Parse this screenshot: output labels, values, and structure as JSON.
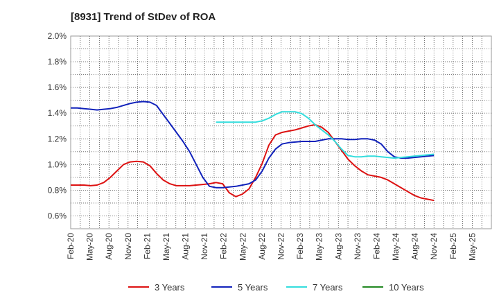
{
  "chart_data": {
    "type": "line",
    "title": "[8931]  Trend of StDev of ROA",
    "xlabel": "",
    "ylabel": "",
    "ylim": [
      0.5,
      2.0
    ],
    "yticks": [
      "0.6%",
      "0.8%",
      "1.0%",
      "1.2%",
      "1.4%",
      "1.6%",
      "1.8%",
      "2.0%"
    ],
    "ytick_values": [
      0.6,
      0.8,
      1.0,
      1.2,
      1.4,
      1.6,
      1.8,
      2.0
    ],
    "xticks": [
      "Feb-20",
      "May-20",
      "Aug-20",
      "Nov-20",
      "Feb-21",
      "May-21",
      "Aug-21",
      "Nov-21",
      "Feb-22",
      "May-22",
      "Aug-22",
      "Nov-22",
      "Feb-23",
      "May-23",
      "Aug-23",
      "Nov-23",
      "Feb-24",
      "May-24",
      "Aug-24",
      "Nov-24",
      "Feb-25",
      "May-25"
    ],
    "grid": true,
    "legend_position": "bottom",
    "series": [
      {
        "name": "3 Years",
        "color": "#dd1111",
        "values": [
          0.84,
          0.84,
          0.84,
          0.835,
          0.84,
          0.86,
          0.9,
          0.95,
          1.0,
          1.02,
          1.025,
          1.02,
          0.99,
          0.93,
          0.88,
          0.85,
          0.835,
          0.835,
          0.835,
          0.84,
          0.845,
          0.85,
          0.86,
          0.85,
          0.78,
          0.75,
          0.77,
          0.81,
          0.9,
          1.01,
          1.15,
          1.23,
          1.25,
          1.26,
          1.27,
          1.285,
          1.3,
          1.31,
          1.29,
          1.25,
          1.18,
          1.11,
          1.04,
          0.99,
          0.95,
          0.92,
          0.91,
          0.9,
          0.88,
          0.85,
          0.82,
          0.79,
          0.76,
          0.74,
          0.73,
          0.72
        ]
      },
      {
        "name": "5 Years",
        "color": "#1122bb",
        "values": [
          1.44,
          1.44,
          1.435,
          1.43,
          1.425,
          1.43,
          1.435,
          1.445,
          1.46,
          1.475,
          1.485,
          1.49,
          1.485,
          1.46,
          1.39,
          1.32,
          1.25,
          1.18,
          1.1,
          1.0,
          0.9,
          0.83,
          0.82,
          0.82,
          0.825,
          0.83,
          0.84,
          0.85,
          0.88,
          0.95,
          1.05,
          1.12,
          1.16,
          1.17,
          1.175,
          1.18,
          1.18,
          1.18,
          1.19,
          1.2,
          1.2,
          1.2,
          1.195,
          1.195,
          1.2,
          1.2,
          1.19,
          1.16,
          1.1,
          1.06,
          1.05,
          1.05,
          1.055,
          1.06,
          1.065,
          1.07
        ]
      },
      {
        "name": "7 Years",
        "color": "#33dddd",
        "values": [
          null,
          null,
          null,
          null,
          null,
          null,
          null,
          null,
          null,
          null,
          null,
          null,
          null,
          null,
          null,
          null,
          null,
          null,
          null,
          null,
          null,
          null,
          1.33,
          1.33,
          1.33,
          1.33,
          1.33,
          1.33,
          1.33,
          1.34,
          1.36,
          1.39,
          1.41,
          1.41,
          1.41,
          1.395,
          1.36,
          1.31,
          1.27,
          1.23,
          1.18,
          1.12,
          1.07,
          1.06,
          1.06,
          1.065,
          1.065,
          1.06,
          1.055,
          1.05,
          1.055,
          1.06,
          1.065,
          1.07,
          1.075,
          1.08
        ]
      },
      {
        "name": "10 Years",
        "color": "#228822",
        "values": []
      }
    ]
  }
}
